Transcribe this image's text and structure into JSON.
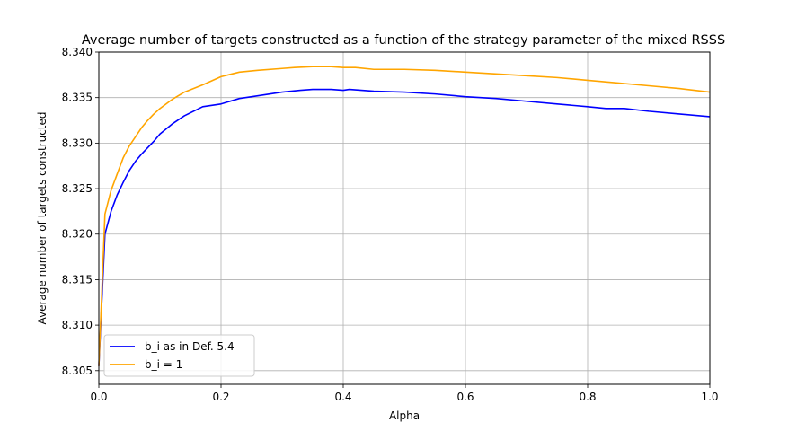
{
  "chart_data": {
    "type": "line",
    "title": "Average number of targets constructed as a function of the strategy parameter of the mixed RSSS",
    "xlabel": "Alpha",
    "ylabel": "Average number of targets constructed",
    "xlim": [
      0.0,
      1.0
    ],
    "ylim": [
      8.3035,
      8.34
    ],
    "xticks": [
      0.0,
      0.2,
      0.4,
      0.6,
      0.8,
      1.0
    ],
    "xtick_labels": [
      "0.0",
      "0.2",
      "0.4",
      "0.6",
      "0.8",
      "1.0"
    ],
    "yticks": [
      8.305,
      8.31,
      8.315,
      8.32,
      8.325,
      8.33,
      8.335,
      8.34
    ],
    "ytick_labels": [
      "8.305",
      "8.310",
      "8.315",
      "8.320",
      "8.325",
      "8.330",
      "8.335",
      "8.340"
    ],
    "grid": true,
    "legend_position": "lower-left",
    "series": [
      {
        "name": "b_i as in Def. 5.4",
        "color": "#0000ff",
        "x": [
          0.0,
          0.01,
          0.02,
          0.03,
          0.04,
          0.05,
          0.06,
          0.07,
          0.08,
          0.09,
          0.1,
          0.12,
          0.14,
          0.17,
          0.2,
          0.23,
          0.26,
          0.3,
          0.33,
          0.35,
          0.38,
          0.4,
          0.41,
          0.45,
          0.5,
          0.55,
          0.6,
          0.65,
          0.7,
          0.75,
          0.8,
          0.83,
          0.86,
          0.9,
          0.95,
          1.0
        ],
        "y": [
          8.3055,
          8.32,
          8.3225,
          8.3243,
          8.3257,
          8.327,
          8.328,
          8.3288,
          8.3295,
          8.3302,
          8.331,
          8.3321,
          8.333,
          8.334,
          8.3343,
          8.3349,
          8.3352,
          8.3356,
          8.3358,
          8.3359,
          8.3359,
          8.3358,
          8.3359,
          8.3357,
          8.3356,
          8.3354,
          8.3351,
          8.3349,
          8.3346,
          8.3343,
          8.334,
          8.3338,
          8.3338,
          8.3335,
          8.3332,
          8.3329
        ]
      },
      {
        "name": "b_i = 1",
        "color": "#ffa500",
        "x": [
          0.0,
          0.01,
          0.02,
          0.03,
          0.04,
          0.05,
          0.06,
          0.07,
          0.08,
          0.09,
          0.1,
          0.12,
          0.14,
          0.17,
          0.2,
          0.23,
          0.26,
          0.3,
          0.32,
          0.35,
          0.38,
          0.4,
          0.42,
          0.45,
          0.5,
          0.55,
          0.6,
          0.65,
          0.7,
          0.75,
          0.8,
          0.85,
          0.9,
          0.95,
          1.0
        ],
        "y": [
          8.3055,
          8.3222,
          8.3248,
          8.3266,
          8.3284,
          8.3297,
          8.3307,
          8.3317,
          8.3325,
          8.3332,
          8.3338,
          8.3348,
          8.3356,
          8.3364,
          8.3373,
          8.3378,
          8.338,
          8.3382,
          8.3383,
          8.3384,
          8.3384,
          8.3383,
          8.3383,
          8.3381,
          8.3381,
          8.338,
          8.3378,
          8.3376,
          8.3374,
          8.3372,
          8.3369,
          8.3366,
          8.3363,
          8.336,
          8.3356
        ]
      }
    ]
  }
}
